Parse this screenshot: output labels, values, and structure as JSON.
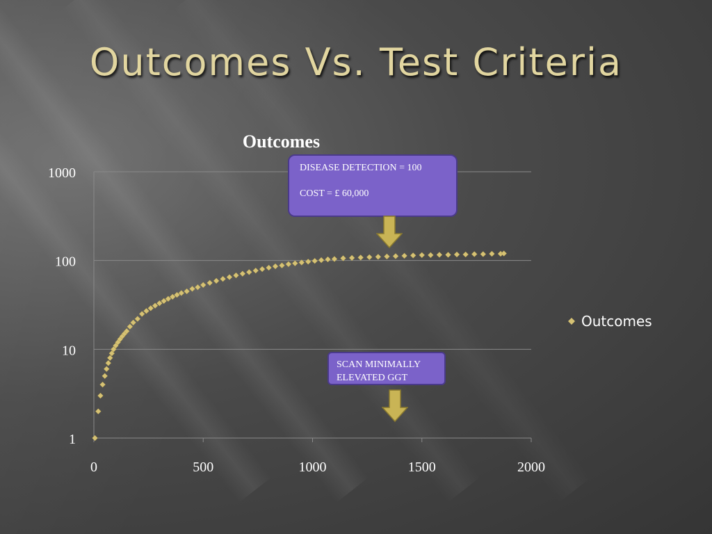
{
  "slide": {
    "title": "Outcomes Vs. Test Criteria"
  },
  "callouts": {
    "detection": {
      "line1": "DISEASE DETECTION = 100",
      "line2": "COST  =  £ 60,000"
    },
    "scan": {
      "line1": "SCAN MINIMALLY",
      "line2": "ELEVATED GGT"
    }
  },
  "colors": {
    "series": "#d6c274",
    "callout_fill": "#7b62c9",
    "arrow": "#c9b455",
    "title": "#e2d6a0"
  },
  "chart_data": {
    "type": "scatter",
    "title": "Outcomes",
    "xlabel": "",
    "ylabel": "",
    "x_scale": "linear",
    "y_scale": "log",
    "xlim": [
      0,
      2000
    ],
    "ylim": [
      1,
      1000
    ],
    "x_ticks": [
      "0",
      "500",
      "1000",
      "1500",
      "2000"
    ],
    "y_ticks": [
      "1",
      "10",
      "100",
      "1000"
    ],
    "grid": "horizontal",
    "legend_position": "right",
    "marker": "diamond",
    "series": [
      {
        "name": "Outcomes",
        "points": [
          [
            5,
            1
          ],
          [
            20,
            2
          ],
          [
            30,
            3
          ],
          [
            40,
            4
          ],
          [
            50,
            5
          ],
          [
            58,
            6
          ],
          [
            66,
            7
          ],
          [
            74,
            8
          ],
          [
            82,
            9
          ],
          [
            90,
            10
          ],
          [
            100,
            11
          ],
          [
            110,
            12
          ],
          [
            120,
            13
          ],
          [
            130,
            14
          ],
          [
            140,
            15
          ],
          [
            150,
            16
          ],
          [
            165,
            18
          ],
          [
            180,
            20
          ],
          [
            200,
            22
          ],
          [
            220,
            25
          ],
          [
            240,
            27
          ],
          [
            260,
            29
          ],
          [
            280,
            31
          ],
          [
            300,
            33
          ],
          [
            320,
            35
          ],
          [
            340,
            37
          ],
          [
            360,
            39
          ],
          [
            380,
            41
          ],
          [
            400,
            43
          ],
          [
            425,
            45
          ],
          [
            450,
            48
          ],
          [
            475,
            50
          ],
          [
            500,
            53
          ],
          [
            530,
            56
          ],
          [
            560,
            59
          ],
          [
            590,
            62
          ],
          [
            620,
            65
          ],
          [
            650,
            68
          ],
          [
            680,
            71
          ],
          [
            710,
            74
          ],
          [
            740,
            77
          ],
          [
            770,
            80
          ],
          [
            800,
            83
          ],
          [
            830,
            86
          ],
          [
            860,
            88
          ],
          [
            890,
            91
          ],
          [
            920,
            93
          ],
          [
            950,
            95
          ],
          [
            980,
            97
          ],
          [
            1010,
            99
          ],
          [
            1040,
            101
          ],
          [
            1070,
            103
          ],
          [
            1100,
            104
          ],
          [
            1140,
            106
          ],
          [
            1180,
            107
          ],
          [
            1220,
            108
          ],
          [
            1260,
            109
          ],
          [
            1300,
            110
          ],
          [
            1340,
            111
          ],
          [
            1380,
            112
          ],
          [
            1420,
            113
          ],
          [
            1460,
            114
          ],
          [
            1500,
            115
          ],
          [
            1540,
            115
          ],
          [
            1580,
            116
          ],
          [
            1620,
            116
          ],
          [
            1660,
            117
          ],
          [
            1700,
            117
          ],
          [
            1740,
            118
          ],
          [
            1780,
            118
          ],
          [
            1820,
            119
          ],
          [
            1860,
            119
          ],
          [
            1875,
            120
          ]
        ]
      }
    ]
  }
}
